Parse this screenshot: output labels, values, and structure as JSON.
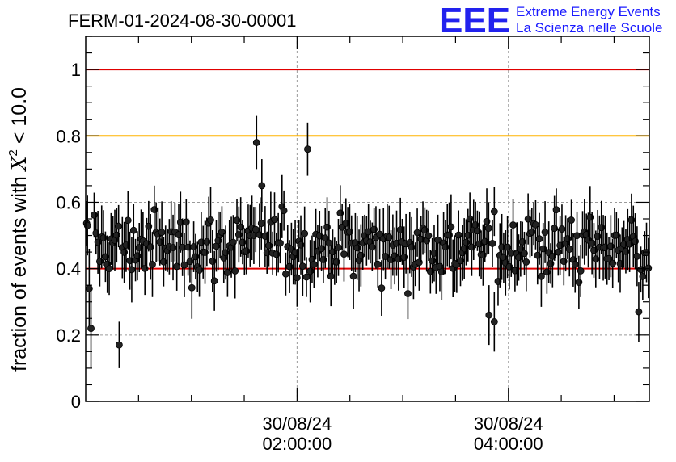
{
  "header": {
    "run_title": "FERM-01-2024-08-30-00001"
  },
  "logo": {
    "mark": "EEE",
    "line1": "Extreme Energy Events",
    "line2": "La Scienza nelle Scuole"
  },
  "colors": {
    "threshold_red": "#e00000",
    "threshold_orange": "#ffb400",
    "points": "#000000",
    "grid": "#9a9a9a",
    "logo_blue": "#1a1aff"
  },
  "chart_data": {
    "type": "scatter",
    "title": "FERM-01-2024-08-30-00001",
    "xlabel": "",
    "ylabel_parts": {
      "pre": "fraction of events with ",
      "chi": "X",
      "sup": "2",
      "post": " < 10.0"
    },
    "xlim_minutes": [
      0,
      320
    ],
    "ylim": [
      0,
      1.1
    ],
    "grid": true,
    "y_ticks": [
      {
        "value": 0,
        "label": "0"
      },
      {
        "value": 0.2,
        "label": "0.2"
      },
      {
        "value": 0.4,
        "label": "0.4"
      },
      {
        "value": 0.6,
        "label": "0.6"
      },
      {
        "value": 0.8,
        "label": "0.8"
      },
      {
        "value": 1,
        "label": "1"
      }
    ],
    "x_ticks": [
      {
        "minute": 120,
        "date": "30/08/24",
        "time": "02:00:00"
      },
      {
        "minute": 240,
        "date": "30/08/24",
        "time": "04:00:00"
      }
    ],
    "reference_lines": [
      {
        "y": 1.0,
        "color": "#e00000"
      },
      {
        "y": 0.8,
        "color": "#ffb400"
      },
      {
        "y": 0.4,
        "color": "#e00000"
      }
    ],
    "points_summary": {
      "count": 300,
      "typical_range": [
        0.3,
        0.65
      ],
      "mean": 0.47,
      "typical_error": 0.08
    },
    "notable_points": [
      {
        "minute": 1,
        "y": 0.53,
        "err": 0.09
      },
      {
        "minute": 2,
        "y": 0.34,
        "err": 0.12
      },
      {
        "minute": 3,
        "y": 0.22,
        "err": 0.12
      },
      {
        "minute": 19,
        "y": 0.17,
        "err": 0.07
      },
      {
        "minute": 97,
        "y": 0.78,
        "err": 0.08
      },
      {
        "minute": 100,
        "y": 0.65,
        "err": 0.08
      },
      {
        "minute": 126,
        "y": 0.76,
        "err": 0.08
      },
      {
        "minute": 229,
        "y": 0.26,
        "err": 0.09
      },
      {
        "minute": 232,
        "y": 0.24,
        "err": 0.09
      },
      {
        "minute": 314,
        "y": 0.27,
        "err": 0.09
      }
    ]
  }
}
